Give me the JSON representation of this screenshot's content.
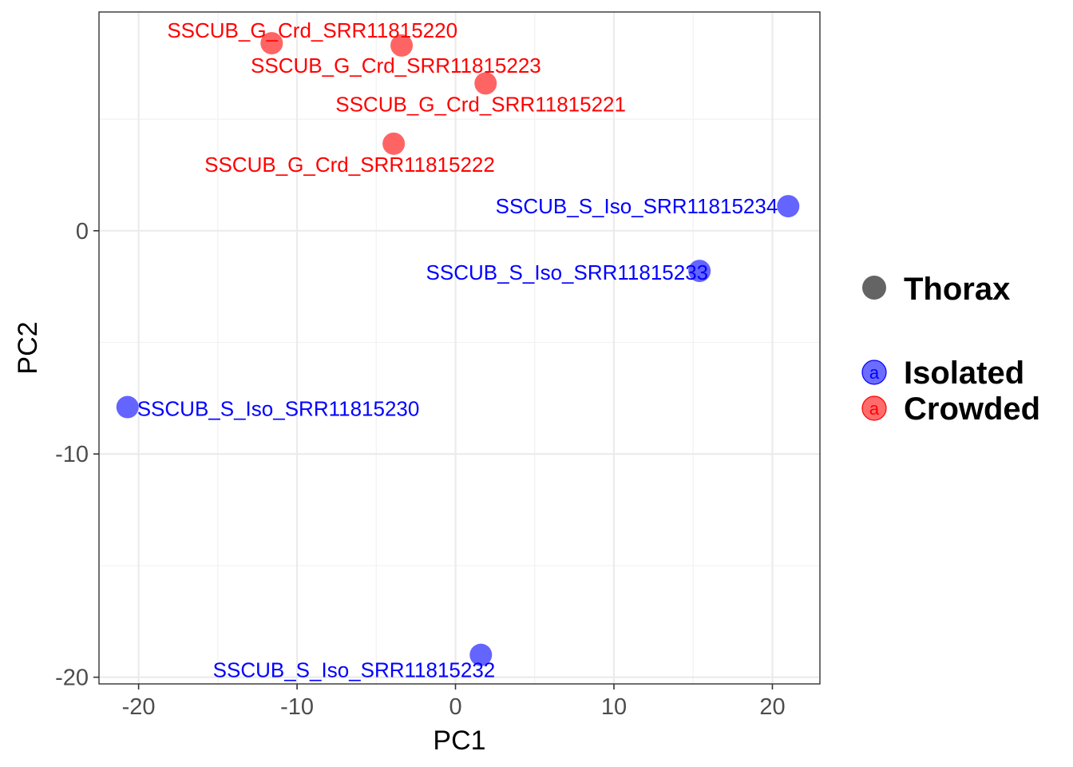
{
  "chart_data": {
    "type": "scatter",
    "title": "",
    "xlabel": "PC1",
    "ylabel": "PC2",
    "xlim": [
      -22.5,
      23
    ],
    "ylim": [
      -20.3,
      9.8
    ],
    "xticks": [
      -20,
      -10,
      0,
      10,
      20
    ],
    "yticks": [
      0,
      -10,
      -20
    ],
    "xtick_labels": [
      "-20",
      "-10",
      "0",
      "10",
      "20"
    ],
    "ytick_labels": [
      "0",
      "-10",
      "-20"
    ],
    "grid": true,
    "legend_position": "right",
    "series": [
      {
        "name": "Isolated",
        "color": "#6464ff",
        "label_color": "#0000ff",
        "points": [
          {
            "x": 21.0,
            "y": 1.1,
            "label": "SSCUB_S_Iso_SRR11815234"
          },
          {
            "x": 15.4,
            "y": -1.8,
            "label": "SSCUB_S_Iso_SRR11815233"
          },
          {
            "x": -20.7,
            "y": -7.9,
            "label": "SSCUB_S_Iso_SRR11815230"
          },
          {
            "x": 1.6,
            "y": -19.0,
            "label": "SSCUB_S_Iso_SRR11815232"
          }
        ]
      },
      {
        "name": "Crowded",
        "color": "#ff6464",
        "label_color": "#ff0000",
        "points": [
          {
            "x": -11.6,
            "y": 8.4,
            "label": "SSCUB_G_Crd_SRR11815220"
          },
          {
            "x": -3.4,
            "y": 8.3,
            "label": "SSCUB_G_Crd_SRR11815223"
          },
          {
            "x": 1.9,
            "y": 6.6,
            "label": "SSCUB_G_Crd_SRR11815221"
          },
          {
            "x": -3.9,
            "y": 3.9,
            "label": "SSCUB_G_Crd_SRR11815222"
          }
        ]
      }
    ],
    "legend": {
      "shape_title": "Thorax",
      "shape_color": "#646464",
      "glyph": "a",
      "entries": [
        {
          "label": "Isolated",
          "fill": "#6464ff",
          "text_color": "#0000ff"
        },
        {
          "label": "Crowded",
          "fill": "#ff6464",
          "text_color": "#ff0000"
        }
      ]
    }
  }
}
